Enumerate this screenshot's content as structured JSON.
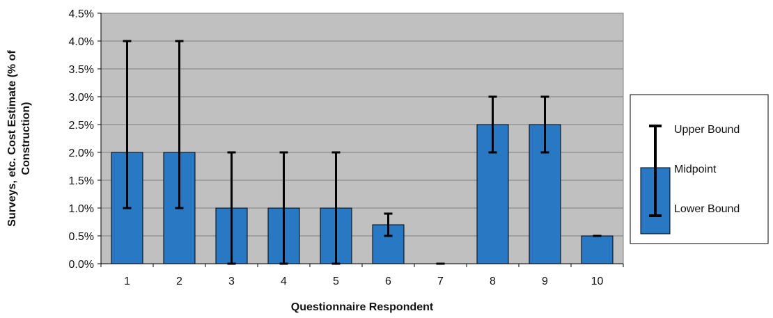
{
  "chart_data": {
    "type": "bar",
    "categories": [
      "1",
      "2",
      "3",
      "4",
      "5",
      "6",
      "7",
      "8",
      "9",
      "10"
    ],
    "midpoint": [
      0.02,
      0.02,
      0.01,
      0.01,
      0.01,
      0.007,
      0.0,
      0.025,
      0.025,
      0.005
    ],
    "lower_bound": [
      0.01,
      0.01,
      0.0,
      0.0,
      0.0,
      0.005,
      0.0,
      0.02,
      0.02,
      0.005
    ],
    "upper_bound": [
      0.04,
      0.04,
      0.02,
      0.02,
      0.02,
      0.009,
      0.0,
      0.03,
      0.03,
      0.005
    ],
    "ylim": [
      0,
      0.045
    ],
    "yticks": [
      0,
      0.005,
      0.01,
      0.015,
      0.02,
      0.025,
      0.03,
      0.035,
      0.04,
      0.045
    ],
    "ytick_labels": [
      "0.0%",
      "0.5%",
      "1.0%",
      "1.5%",
      "2.0%",
      "2.5%",
      "3.0%",
      "3.5%",
      "4.0%",
      "4.5%"
    ],
    "xlabel": "Questionnaire Respondent",
    "ylabel_line1": "Surveys, etc. Cost Estimate (% of",
    "ylabel_line2": "Construction)",
    "grid": true,
    "legend_position": "right",
    "legend": {
      "upper": "Upper Bound",
      "mid": "Midpoint",
      "lower": "Lower Bound"
    },
    "colors": {
      "bar": "#2878c4",
      "plot_background": "#c0c0c0",
      "error_bar": "#000000",
      "grid": "#808080"
    }
  }
}
